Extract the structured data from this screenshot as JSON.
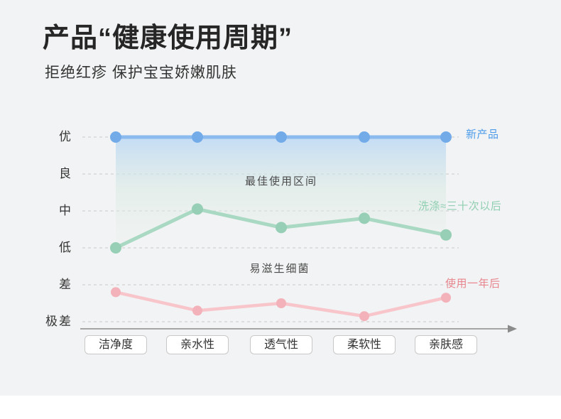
{
  "header": {
    "title": "产品“健康使用周期”",
    "subtitle": "拒绝红疹 保护宝宝娇嫩肌肤"
  },
  "chart_data": {
    "type": "line",
    "title": "产品“健康使用周期”",
    "subtitle": "拒绝红疹 保护宝宝娇嫩肌肤",
    "categories": [
      "洁净度",
      "亲水性",
      "透气性",
      "柔软性",
      "亲肤感"
    ],
    "y_tick_labels": [
      "优",
      "良",
      "中",
      "低",
      "差",
      "极差"
    ],
    "y_axis_scale": {
      "优": 5,
      "良": 4,
      "中": 3,
      "低": 2,
      "差": 1,
      "极差": 0
    },
    "ylim": [
      0,
      5
    ],
    "grid": "dashed-horizontal",
    "legend_position": "right",
    "series": [
      {
        "name": "新产品",
        "values": [
          5,
          5,
          5,
          5,
          5
        ],
        "line_color": "#8abaee",
        "dot_color": "#73abe9",
        "label_color": "#4d9cea"
      },
      {
        "name": "洗涤≈三十次以后",
        "values": [
          2.0,
          3.05,
          2.55,
          2.8,
          2.35
        ],
        "line_color": "#a9d8c3",
        "dot_color": "#96cfb5",
        "label_color": "#90cfb2"
      },
      {
        "name": "使用一年后",
        "values": [
          0.8,
          0.3,
          0.5,
          0.15,
          0.65
        ],
        "line_color": "#f7c5ca",
        "dot_color": "#f3b2ba",
        "label_color": "#e8858e"
      }
    ],
    "annotations": [
      {
        "text": "最佳使用区间",
        "region": "between 新产品 and 洗涤≈三十次以后"
      },
      {
        "text": "易滋生细菌",
        "region": "between 洗涤≈三十次以后 and 使用一年后"
      }
    ],
    "area_fill": {
      "between": [
        "新产品",
        "洗涤≈三十次以后"
      ],
      "gradient_top": "#bcd8f5",
      "gradient_bottom": "#eaf1ec"
    }
  }
}
